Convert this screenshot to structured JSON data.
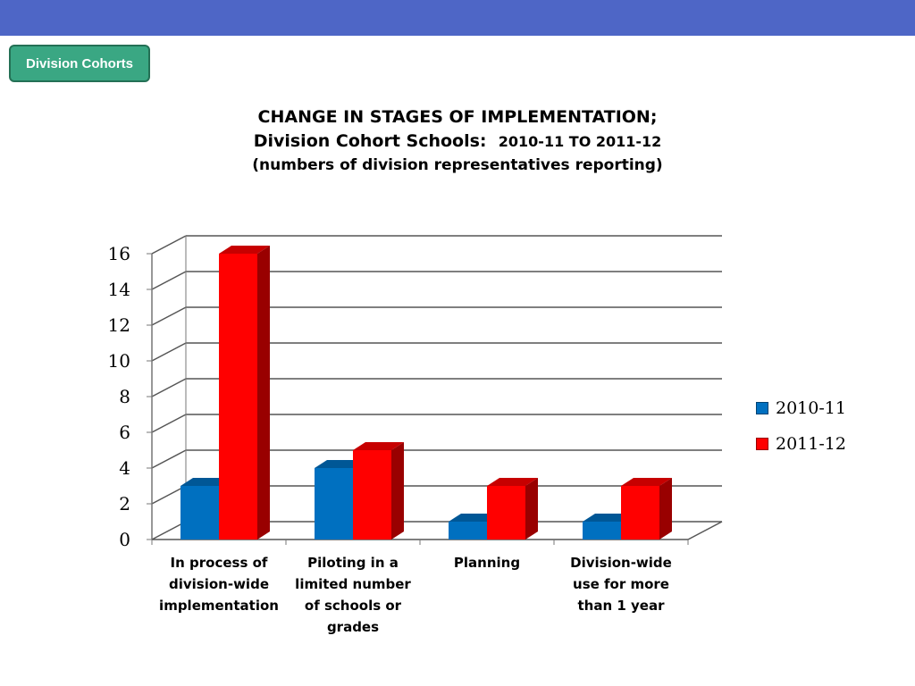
{
  "header": {
    "badge": "Division Cohorts"
  },
  "title": {
    "line1": "CHANGE IN STAGES OF IMPLEMENTATION;",
    "line2a": "Division Cohort Schools:",
    "line2b": "2010-11 TO 2011-12",
    "line3": "(numbers of division representatives reporting)"
  },
  "chart_data": {
    "type": "bar",
    "title": "CHANGE IN STAGES OF IMPLEMENTATION; Division Cohort Schools: 2010-11 TO 2011-12 (numbers of division representatives reporting)",
    "categories": [
      "In process of division-wide implementation",
      "Piloting in a limited number of schools or grades",
      "Planning",
      "Division-wide use for more than 1 year"
    ],
    "category_lines": [
      [
        "In process of",
        "division-wide",
        "implementation"
      ],
      [
        "Piloting in a",
        "limited number",
        "of schools or",
        "grades"
      ],
      [
        "Planning"
      ],
      [
        "Division-wide",
        "use for more",
        "than 1 year"
      ]
    ],
    "series": [
      {
        "name": "2010-11",
        "values": [
          3,
          4,
          1,
          1
        ],
        "color": "#0070c0"
      },
      {
        "name": "2011-12",
        "values": [
          16,
          5,
          3,
          3
        ],
        "color": "#ff0000"
      }
    ],
    "ylim": [
      0,
      16
    ],
    "yticks": [
      0,
      2,
      4,
      6,
      8,
      10,
      12,
      14,
      16
    ],
    "grid": true,
    "legend": "right",
    "xlabel": "",
    "ylabel": ""
  }
}
